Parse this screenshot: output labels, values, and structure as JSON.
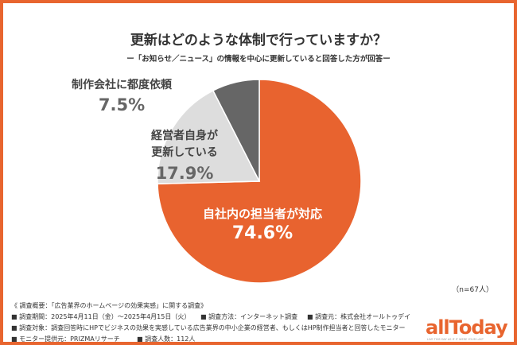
{
  "chart_data": {
    "type": "pie",
    "title": "更新はどのような体制で行っていますか？",
    "subtitle": "ー「お知らせ／ニュース」の情報を中心に更新していると回答した方が回答ー",
    "slices": [
      {
        "label": "自社内の担当者が対応",
        "value": 74.6,
        "value_label": "74.6%",
        "color": "#E8632F"
      },
      {
        "label_lines": [
          "経営者自身が",
          "更新している"
        ],
        "value": 17.9,
        "value_label": "17.9%",
        "color": "#DDDDDD"
      },
      {
        "label": "制作会社に都度依頼",
        "value": 7.5,
        "value_label": "7.5%",
        "color": "#666666"
      }
    ],
    "start_angle": "top",
    "direction": "clockwise",
    "sample_note": "（n=67人）"
  },
  "footer": {
    "line1": "《 調査概要：「広告業界のホームページの効果実感」に関する調査》",
    "period": "■ 調査期間：2025年4月11日（金）〜2025年4月15日（火）",
    "method": "■ 調査方法：インターネット調査",
    "source": "■ 調査元：株式会社オールトゥデイ",
    "target": "■ 調査対象：調査回答時にHPでビジネスの効果を実感している広告業界の中小企業の経営者、もしくはHP制作担当者と回答したモニター",
    "provider": "■ モニター提供元：PRIZMAリサーチ",
    "count": "■ 調査人数：112人"
  },
  "logo": {
    "text": "allToday",
    "tagline": "LIVE THIS DAY AS IF IT WERE YOUR LAST"
  }
}
